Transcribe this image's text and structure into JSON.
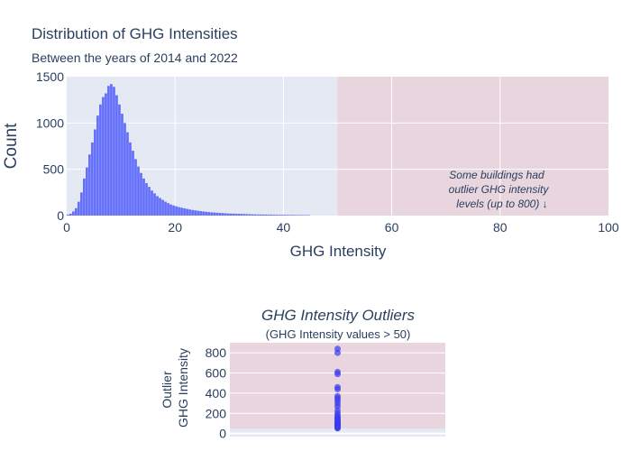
{
  "chart_data": [
    {
      "type": "bar",
      "title": "Distribution of GHG Intensities",
      "subtitle": "Between the years of 2014 and 2022",
      "xlabel": "GHG Intensity",
      "ylabel": "Count",
      "xlim": [
        0,
        100
      ],
      "ylim": [
        0,
        1500
      ],
      "xticks": [
        0,
        20,
        40,
        60,
        80,
        100
      ],
      "yticks": [
        0,
        500,
        1000,
        1500
      ],
      "grid": true,
      "bin_width": 0.5,
      "bin_start": 0,
      "values": [
        10,
        20,
        45,
        80,
        150,
        250,
        400,
        520,
        660,
        790,
        930,
        1080,
        1200,
        1280,
        1320,
        1400,
        1420,
        1390,
        1300,
        1200,
        1100,
        1000,
        900,
        790,
        700,
        610,
        530,
        460,
        400,
        350,
        310,
        270,
        240,
        210,
        190,
        170,
        150,
        135,
        120,
        110,
        100,
        92,
        85,
        78,
        72,
        66,
        60,
        56,
        52,
        48,
        44,
        41,
        38,
        35,
        33,
        31,
        29,
        27,
        25,
        23,
        22,
        21,
        20,
        19,
        18,
        17,
        16,
        15,
        14,
        13,
        12,
        12,
        11,
        11,
        10,
        10,
        9,
        9,
        8,
        8,
        8,
        7,
        7,
        7,
        6,
        6,
        6,
        5,
        5,
        5
      ],
      "highlight_region": {
        "x_from": 50,
        "x_to": 100,
        "color": "#e8d5de"
      },
      "plot_bg": "#e5e9f3",
      "bar_color": "#636efa",
      "annotation": [
        "Some buildings had",
        "outlier GHG intensity",
        "levels (up to 800) ↓"
      ]
    },
    {
      "type": "scatter",
      "title": "GHG Intensity Outliers",
      "subtitle": "(GHG Intensity values > 50)",
      "ylabel": [
        "Outlier",
        "GHG Intensity"
      ],
      "ylim": [
        -30,
        900
      ],
      "yticks": [
        0,
        200,
        400,
        600,
        800
      ],
      "grid": true,
      "points": [
        840,
        800,
        610,
        590,
        460,
        440,
        370,
        350,
        330,
        300,
        270,
        230,
        200,
        180,
        160,
        150,
        140,
        130,
        120,
        110,
        100,
        95,
        90,
        85,
        80,
        75,
        70,
        65,
        60,
        56,
        52
      ],
      "marker_color": "#3b3bf0",
      "band_color": "#e8d5de"
    }
  ]
}
